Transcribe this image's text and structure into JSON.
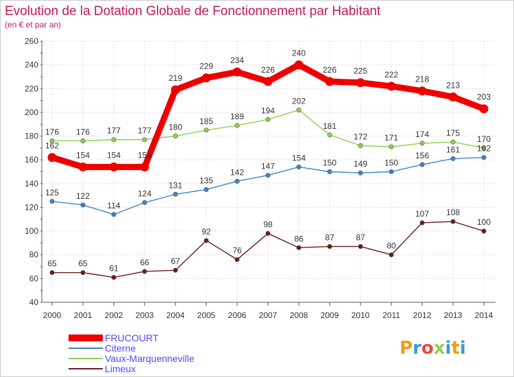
{
  "chart_data": {
    "type": "line",
    "title": "Evolution de la Dotation Globale de Fonctionnement par Habitant",
    "subtitle": "(en € et par an)",
    "xlabel": "",
    "ylabel": "",
    "categories": [
      "2000",
      "2001",
      "2002",
      "2003",
      "2004",
      "2005",
      "2006",
      "2007",
      "2008",
      "2009",
      "2010",
      "2011",
      "2012",
      "2013",
      "2014"
    ],
    "ylim": [
      40,
      260
    ],
    "yticks": [
      40,
      60,
      80,
      100,
      120,
      140,
      160,
      180,
      200,
      220,
      240,
      260
    ],
    "grid": true,
    "legend_position": "bottom-left",
    "series": [
      {
        "name": "FRUCOURT",
        "color": "#ee0000",
        "values": [
          162,
          154,
          154,
          154,
          219,
          229,
          234,
          226,
          240,
          226,
          225,
          222,
          218,
          213,
          203
        ]
      },
      {
        "name": "Citerne",
        "color": "#3d85c6",
        "values": [
          125,
          122,
          114,
          124,
          131,
          135,
          142,
          147,
          154,
          150,
          149,
          150,
          156,
          161,
          162
        ]
      },
      {
        "name": "Vaux-Marquenneville",
        "color": "#8fd14f",
        "values": [
          176,
          176,
          177,
          177,
          180,
          185,
          189,
          194,
          202,
          181,
          172,
          171,
          174,
          175,
          170
        ]
      },
      {
        "name": "Limeux",
        "color": "#6b1a1a",
        "values": [
          65,
          65,
          61,
          66,
          67,
          92,
          76,
          98,
          86,
          87,
          87,
          80,
          107,
          108,
          100
        ]
      }
    ]
  },
  "logo": {
    "text": "Proxiti"
  }
}
